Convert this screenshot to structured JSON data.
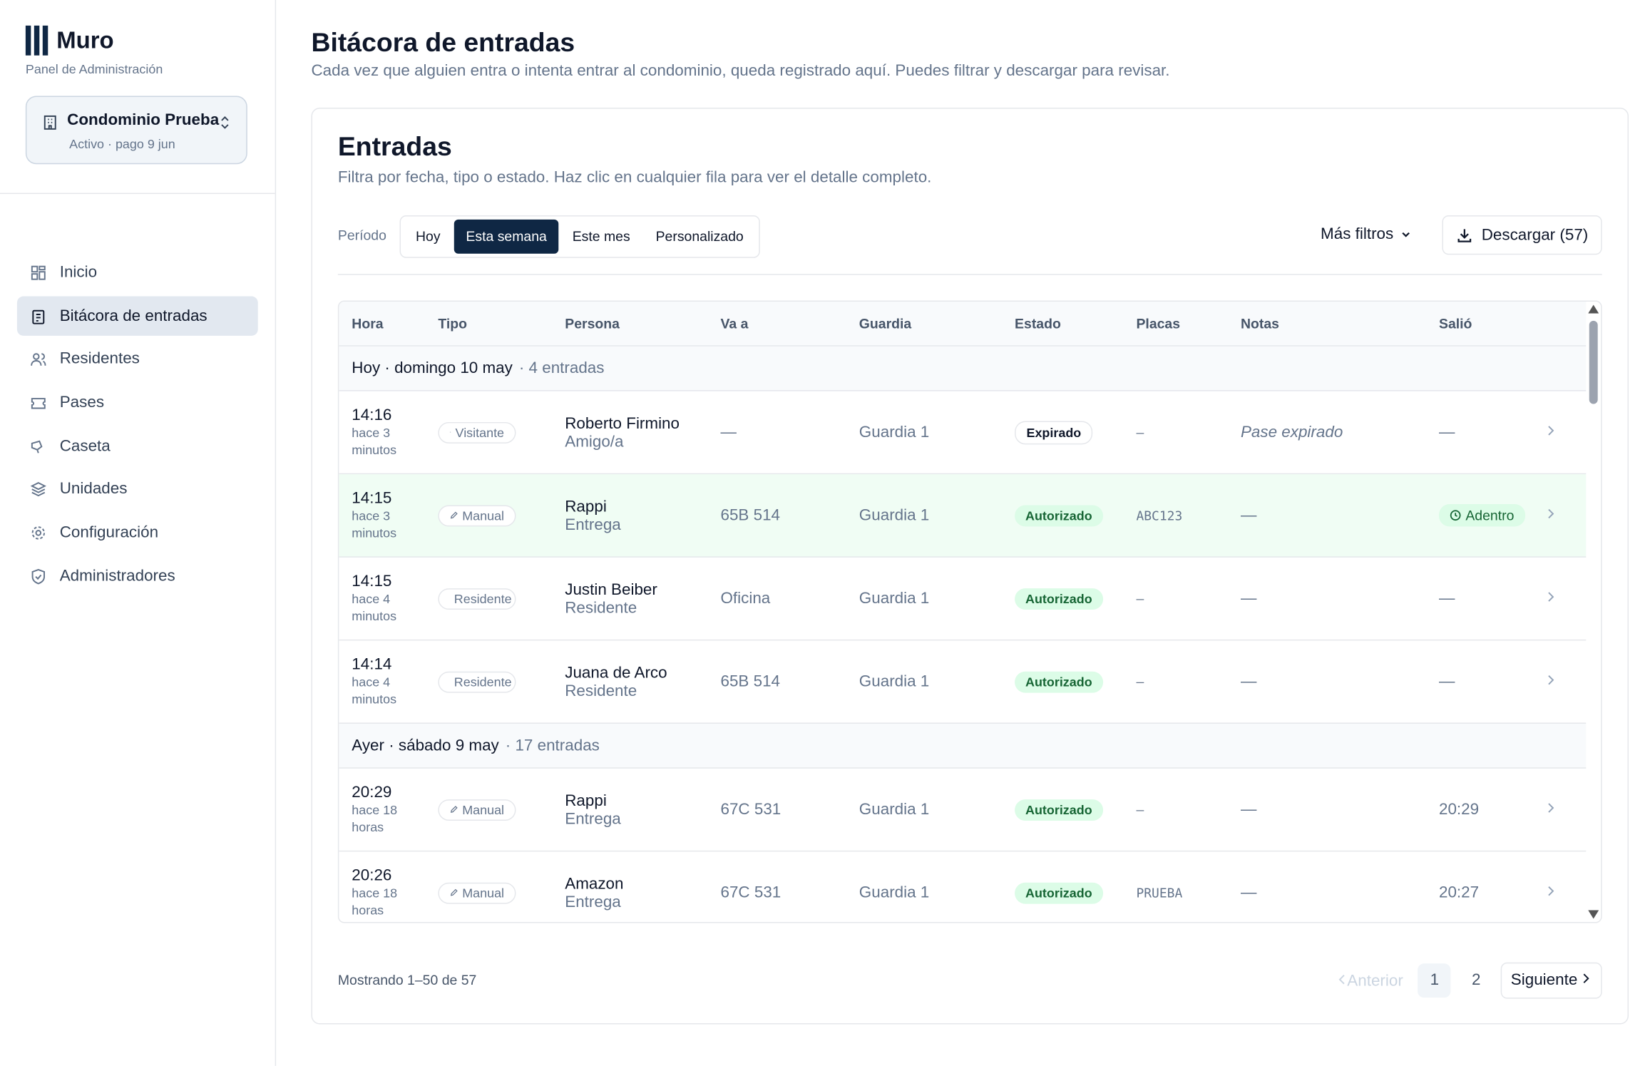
{
  "sidebar": {
    "brand": "Muro",
    "subtitle": "Panel de Administración",
    "condo": {
      "name": "Condominio Prueba",
      "status": "Activo · pago 9 jun"
    },
    "nav": [
      {
        "label": "Inicio",
        "active": false
      },
      {
        "label": "Bitácora de entradas",
        "active": true
      },
      {
        "label": "Residentes",
        "active": false
      },
      {
        "label": "Pases",
        "active": false
      },
      {
        "label": "Caseta",
        "active": false
      },
      {
        "label": "Unidades",
        "active": false
      },
      {
        "label": "Configuración",
        "active": false
      },
      {
        "label": "Administradores",
        "active": false
      }
    ]
  },
  "header": {
    "title": "Bitácora de entradas",
    "subtitle": "Cada vez que alguien entra o intenta entrar al condominio, queda registrado aquí. Puedes filtrar y descargar para revisar."
  },
  "card": {
    "title": "Entradas",
    "subtitle": "Filtra por fecha, tipo o estado. Haz clic en cualquier fila para ver el detalle completo.",
    "period_label": "Período",
    "periods": [
      {
        "label": "Hoy",
        "active": false
      },
      {
        "label": "Esta semana",
        "active": true
      },
      {
        "label": "Este mes",
        "active": false
      },
      {
        "label": "Personalizado",
        "active": false
      }
    ],
    "more_filters": "Más filtros",
    "download": "Descargar (57)"
  },
  "table": {
    "columns": [
      "Hora",
      "Tipo",
      "Persona",
      "Va a",
      "Guardia",
      "Estado",
      "Placas",
      "Notas",
      "Salió"
    ],
    "groups": [
      {
        "label": "Hoy · domingo 10 may",
        "count": "· 4 entradas",
        "rows": [
          {
            "time": "14:16",
            "ago": "hace 3 minutos",
            "type": "Visitante",
            "icon": "person",
            "person": "Roberto Firmino",
            "role": "Amigo/a",
            "goes_to": "—",
            "guard": "Guardia 1",
            "status": "Expirado",
            "status_ok": false,
            "plates": "–",
            "notes": "Pase expirado",
            "notes_italic": true,
            "left": "—",
            "left_badge": false,
            "highlight": false
          },
          {
            "time": "14:15",
            "ago": "hace 3 minutos",
            "type": "Manual",
            "icon": "pencil",
            "person": "Rappi",
            "role": "Entrega",
            "goes_to": "65B 514",
            "guard": "Guardia 1",
            "status": "Autorizado",
            "status_ok": true,
            "plates": "ABC123",
            "notes": "—",
            "notes_italic": false,
            "left": "Adentro",
            "left_badge": true,
            "highlight": true
          },
          {
            "time": "14:15",
            "ago": "hace 4 minutos",
            "type": "Residente",
            "icon": "house",
            "person": "Justin Beiber",
            "role": "Residente",
            "goes_to": "Oficina",
            "guard": "Guardia 1",
            "status": "Autorizado",
            "status_ok": true,
            "plates": "–",
            "notes": "—",
            "notes_italic": false,
            "left": "—",
            "left_badge": false,
            "highlight": false
          },
          {
            "time": "14:14",
            "ago": "hace 4 minutos",
            "type": "Residente",
            "icon": "house",
            "person": "Juana de Arco",
            "role": "Residente",
            "goes_to": "65B 514",
            "guard": "Guardia 1",
            "status": "Autorizado",
            "status_ok": true,
            "plates": "–",
            "notes": "—",
            "notes_italic": false,
            "left": "—",
            "left_badge": false,
            "highlight": false
          }
        ]
      },
      {
        "label": "Ayer · sábado 9 may",
        "count": "· 17 entradas",
        "rows": [
          {
            "time": "20:29",
            "ago": "hace 18 horas",
            "type": "Manual",
            "icon": "pencil",
            "person": "Rappi",
            "role": "Entrega",
            "goes_to": "67C 531",
            "guard": "Guardia 1",
            "status": "Autorizado",
            "status_ok": true,
            "plates": "–",
            "notes": "—",
            "notes_italic": false,
            "left": "20:29",
            "left_badge": false,
            "highlight": false
          },
          {
            "time": "20:26",
            "ago": "hace 18 horas",
            "type": "Manual",
            "icon": "pencil",
            "person": "Amazon",
            "role": "Entrega",
            "goes_to": "67C 531",
            "guard": "Guardia 1",
            "status": "Autorizado",
            "status_ok": true,
            "plates": "PRUEBA",
            "notes": "—",
            "notes_italic": false,
            "left": "20:27",
            "left_badge": false,
            "highlight": false
          }
        ]
      }
    ]
  },
  "footer": {
    "summary": "Mostrando 1–50 de 57",
    "prev": "Anterior",
    "pages": [
      {
        "label": "1",
        "active": true
      },
      {
        "label": "2",
        "active": false
      }
    ],
    "next": "Siguiente"
  }
}
